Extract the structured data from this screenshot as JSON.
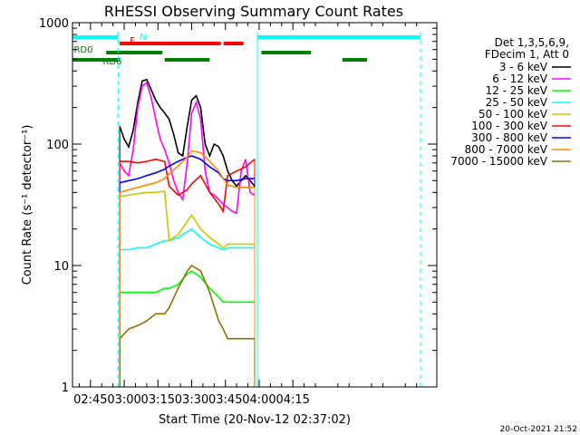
{
  "chart_data": {
    "type": "line",
    "title": "RHESSI Observing Summary Count Rates",
    "xlabel": "Start Time (20-Nov-12 02:37:02)",
    "ylabel": "Count Rate (s⁻¹ detector⁻¹)",
    "x_unit": "minutes",
    "xlim": [
      37,
      199
    ],
    "ylim": [
      1,
      1000
    ],
    "y_scale": "log",
    "x_ticks": [
      {
        "value": 45,
        "label": "02:45"
      },
      {
        "value": 60,
        "label": "03:00"
      },
      {
        "value": 75,
        "label": "03:15"
      },
      {
        "value": 90,
        "label": "03:30"
      },
      {
        "value": 105,
        "label": "03:45"
      },
      {
        "value": 120,
        "label": "04:00"
      },
      {
        "value": 135,
        "label": "04:15"
      }
    ],
    "y_ticks": [
      {
        "value": 1,
        "label": "1"
      },
      {
        "value": 10,
        "label": "10"
      },
      {
        "value": 100,
        "label": "100"
      },
      {
        "value": 1000,
        "label": "1000"
      }
    ],
    "legend_header": [
      "Det 1,3,5,6,9,",
      "FDecim 1, Att 0"
    ],
    "legend_position": "right",
    "grid": false,
    "series": [
      {
        "name": "3 - 6 keV",
        "color": "#000000",
        "x": [
          58,
          60,
          62,
          64,
          66,
          68,
          70,
          72,
          74,
          76,
          78,
          80,
          82,
          84,
          86,
          88,
          90,
          92,
          94,
          96,
          98,
          100,
          102,
          104,
          106,
          108,
          110,
          112,
          114,
          116,
          118
        ],
        "y": [
          140,
          110,
          95,
          130,
          220,
          330,
          340,
          280,
          230,
          200,
          180,
          160,
          120,
          85,
          80,
          140,
          230,
          250,
          200,
          100,
          80,
          100,
          95,
          80,
          60,
          50,
          45,
          50,
          55,
          50,
          45
        ]
      },
      {
        "name": "6 - 12 keV",
        "color": "#ff00ff",
        "x": [
          58,
          60,
          62,
          64,
          66,
          68,
          70,
          72,
          74,
          76,
          78,
          80,
          82,
          84,
          86,
          88,
          90,
          92,
          94,
          96,
          98,
          100,
          102,
          104,
          106,
          108,
          110,
          112,
          114,
          116,
          118
        ],
        "y": [
          70,
          60,
          55,
          90,
          200,
          300,
          320,
          240,
          160,
          110,
          90,
          70,
          50,
          40,
          35,
          70,
          180,
          220,
          160,
          60,
          40,
          38,
          35,
          32,
          30,
          28,
          27,
          60,
          75,
          40,
          38
        ]
      },
      {
        "name": "12 - 25 keV",
        "color": "#00ff00",
        "x": [
          58,
          62,
          66,
          70,
          74,
          78,
          80,
          84,
          88,
          90,
          94,
          98,
          102,
          104,
          106,
          110,
          114,
          118
        ],
        "y": [
          6,
          6,
          6,
          6,
          6,
          6.5,
          6.5,
          7,
          8.5,
          9,
          8,
          6.5,
          5.5,
          5,
          5,
          5,
          5,
          5
        ]
      },
      {
        "name": "25 - 50 keV",
        "color": "#00ffff",
        "x": [
          58,
          62,
          66,
          70,
          74,
          78,
          80,
          84,
          88,
          90,
          94,
          98,
          102,
          104,
          106,
          110,
          114,
          118
        ],
        "y": [
          13.5,
          13.5,
          14,
          14,
          15,
          16,
          16,
          17,
          19,
          20,
          17,
          15,
          14,
          13.5,
          14,
          14,
          14,
          14
        ]
      },
      {
        "name": "50 - 100 keV",
        "color": "#c8c800",
        "x": [
          58,
          62,
          66,
          70,
          74,
          78,
          80,
          84,
          88,
          90,
          94,
          98,
          102,
          104,
          106,
          110,
          114,
          118
        ],
        "y": [
          37,
          38,
          39,
          40,
          40,
          41,
          16,
          18,
          23,
          26,
          20,
          17,
          15,
          14,
          15,
          15,
          15,
          15
        ]
      },
      {
        "name": "100 - 300 keV",
        "color": "#ff0000",
        "x": [
          58,
          62,
          66,
          70,
          74,
          78,
          80,
          84,
          88,
          90,
          94,
          98,
          102,
          104,
          106,
          110,
          114,
          118
        ],
        "y": [
          72,
          72,
          70,
          72,
          75,
          72,
          45,
          38,
          42,
          47,
          55,
          40,
          32,
          28,
          55,
          60,
          65,
          75
        ]
      },
      {
        "name": "300 - 800 keV",
        "color": "#0000ff",
        "x": [
          58,
          62,
          66,
          70,
          74,
          78,
          80,
          84,
          88,
          90,
          94,
          98,
          102,
          104,
          106,
          110,
          114,
          118
        ],
        "y": [
          48,
          50,
          52,
          55,
          58,
          62,
          66,
          72,
          78,
          80,
          75,
          65,
          58,
          52,
          50,
          50,
          52,
          52
        ]
      },
      {
        "name": "800 - 7000 keV",
        "color": "#ff8c00",
        "x": [
          58,
          62,
          66,
          70,
          74,
          78,
          80,
          84,
          88,
          90,
          94,
          98,
          102,
          104,
          106,
          110,
          114,
          118
        ],
        "y": [
          40,
          42,
          44,
          46,
          48,
          52,
          57,
          66,
          78,
          88,
          85,
          72,
          60,
          52,
          46,
          44,
          44,
          44
        ]
      },
      {
        "name": "7000 - 15000 keV",
        "color": "#8b7300",
        "x": [
          58,
          62,
          66,
          70,
          74,
          78,
          80,
          84,
          88,
          90,
          94,
          98,
          102,
          104,
          106,
          110,
          114,
          118
        ],
        "y": [
          2.5,
          3,
          3.2,
          3.5,
          4,
          4,
          4.5,
          6.5,
          9,
          10,
          9,
          6,
          3.5,
          3,
          2.5,
          2.5,
          2.5,
          2.5
        ]
      }
    ],
    "flags": [
      {
        "label": "N",
        "color": "#00ffff",
        "segments": [
          [
            37.2,
            57.3
          ],
          [
            119.2,
            198.5
          ]
        ]
      },
      {
        "label": "F",
        "color": "#ff0000",
        "segments": [
          [
            58,
            103
          ],
          [
            104.2,
            113
          ]
        ]
      },
      {
        "label": "RD0",
        "color": "#008000",
        "segments": [
          [
            52,
            77
          ],
          [
            121,
            143
          ]
        ]
      },
      {
        "label": "RD6",
        "color": "#008000",
        "segments": [
          [
            37.2,
            58
          ],
          [
            78,
            98
          ],
          [
            157,
            168
          ]
        ]
      }
    ],
    "vertical_markers": [
      {
        "x": 57.3,
        "color": "#00ffff",
        "style": "dashed"
      },
      {
        "x": 119.2,
        "color": "#00ffff",
        "style": "solid"
      },
      {
        "x": 198.5,
        "color": "#00ffff",
        "style": "dashed"
      }
    ]
  },
  "footer": {
    "timestamp": "20-Oct-2021 21:52"
  }
}
